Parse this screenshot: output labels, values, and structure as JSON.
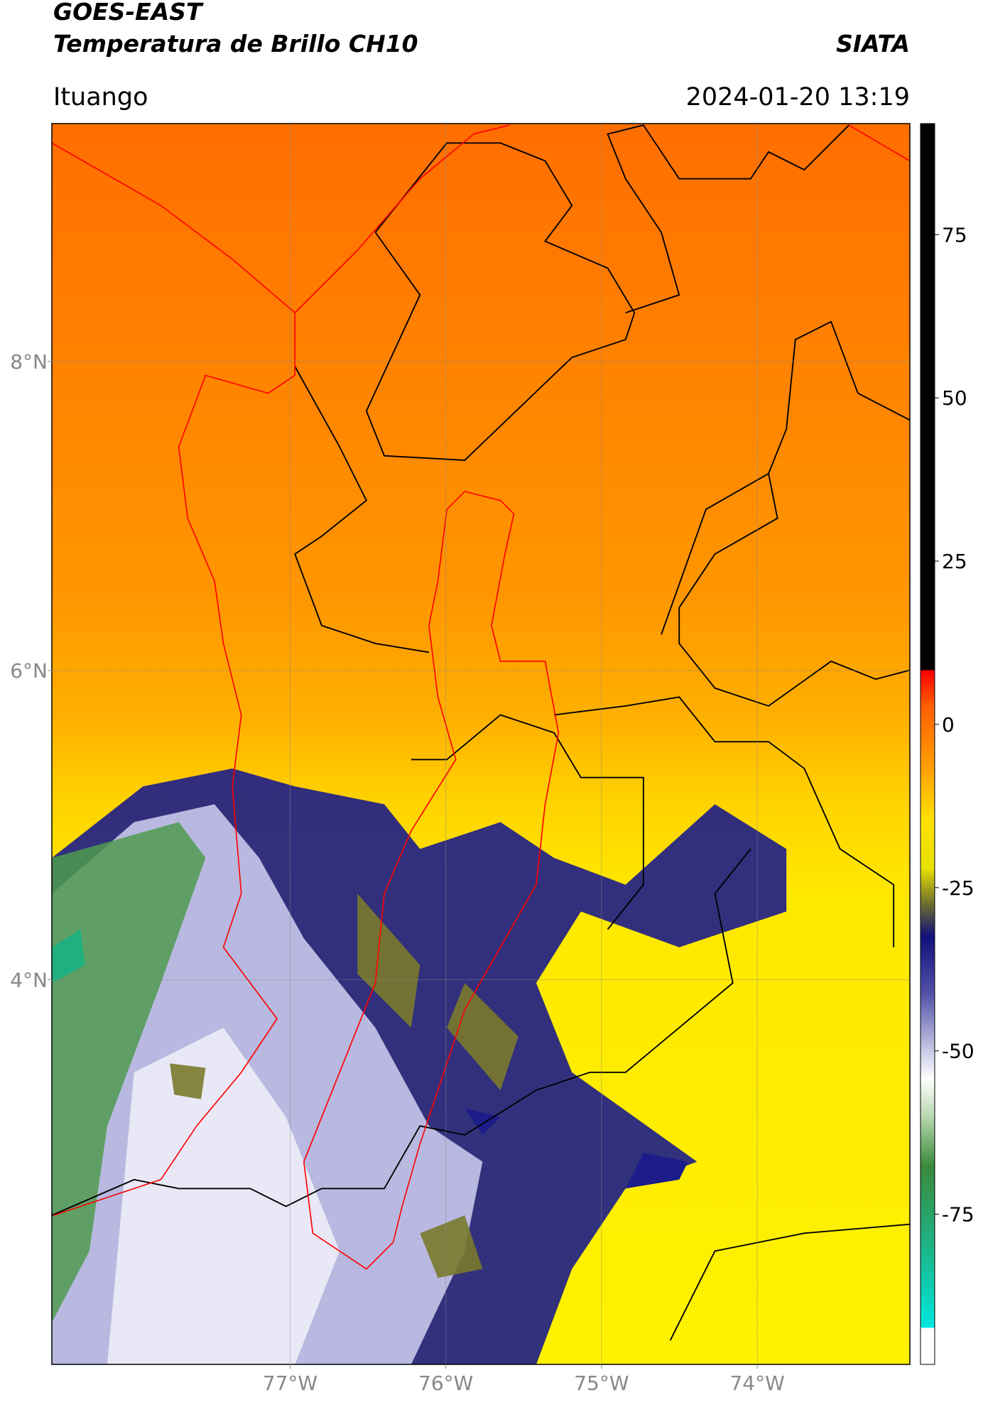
{
  "header": {
    "title": "GOES-EAST",
    "subtitle": "Temperatura de Brillo CH10",
    "credit": "SIATA",
    "location": "Ituango",
    "datetime": "2024-01-20 13:19"
  },
  "map": {
    "xlim": [
      -78.53,
      -73.02
    ],
    "ylim": [
      1.51,
      9.54
    ],
    "xticks": [
      {
        "value": -77,
        "label": "77°W"
      },
      {
        "value": -76,
        "label": "76°W"
      },
      {
        "value": -75,
        "label": "75°W"
      },
      {
        "value": -74,
        "label": "74°W"
      }
    ],
    "yticks": [
      {
        "value": 4,
        "label": "4°N"
      },
      {
        "value": 6,
        "label": "6°N"
      },
      {
        "value": 8,
        "label": "8°N"
      }
    ],
    "grid": true
  },
  "colorbar": {
    "lim": [
      -98,
      92
    ],
    "ticks": [
      -75,
      -50,
      -25,
      0,
      25,
      50,
      75
    ]
  }
}
